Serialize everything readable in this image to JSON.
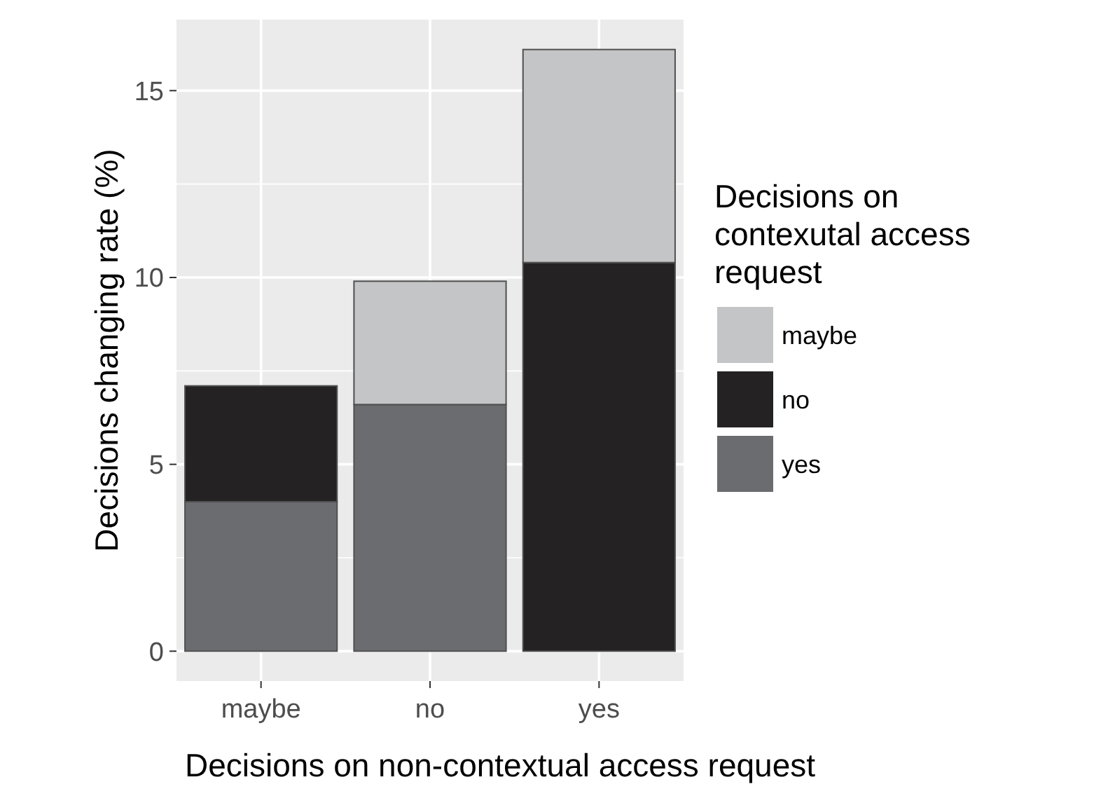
{
  "chart_data": {
    "type": "bar",
    "stacked": true,
    "xlabel": "Decisions on non-contextual access request",
    "ylabel": "Decisions changing rate (%)",
    "legend_title": "Decisions on contexutal access request",
    "categories": [
      "maybe",
      "no",
      "yes"
    ],
    "series": [
      {
        "name": "yes",
        "color": "#6b6c70",
        "values": [
          4.0,
          6.6,
          0
        ]
      },
      {
        "name": "no",
        "color": "#252223",
        "values": [
          3.1,
          0,
          10.4
        ]
      },
      {
        "name": "maybe",
        "color": "#c4c5c7",
        "values": [
          0,
          3.3,
          5.7
        ]
      }
    ],
    "ylim": [
      -0.8,
      16.9
    ],
    "yticks": [
      0,
      5,
      10,
      15
    ],
    "grid": true,
    "legend": "right"
  }
}
